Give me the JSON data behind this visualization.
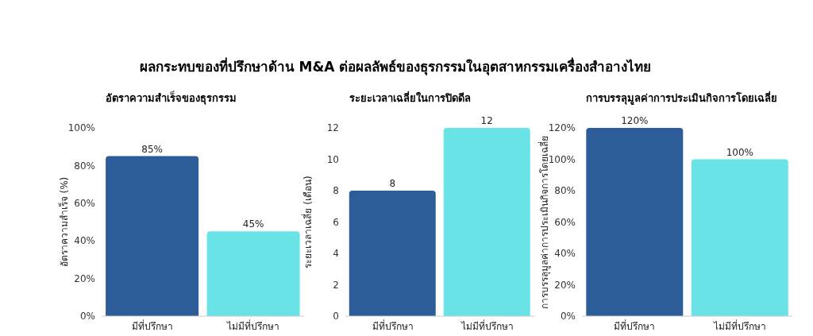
{
  "chart_data": [
    {
      "type": "bar",
      "title": "อัตราความสำเร็จของธุรกรรม",
      "annotations": [
        "ผลกระทบของที่ปรึกษาด้าน M&A ต่อผลลัพธ์ของธุรกรรมในอุตสาหกรรมเครื่องสำอางไทย"
      ],
      "ylabel": "อัตราความสำเร็จ (%)",
      "categories": [
        "มีที่ปรึกษา",
        "ไม่มีที่ปรึกษา"
      ],
      "values": [
        85,
        45
      ],
      "value_labels": [
        "85%",
        "45%"
      ],
      "colors": [
        "#2d5d98",
        "#6ae3e7"
      ],
      "ylim": [
        0,
        100
      ],
      "yticks": [
        {
          "value": 0,
          "label": "0%"
        },
        {
          "value": 20,
          "label": "20%"
        },
        {
          "value": 40,
          "label": "40%"
        },
        {
          "value": 60,
          "label": "60%"
        },
        {
          "value": 80,
          "label": "80%"
        },
        {
          "value": 100,
          "label": "100%"
        }
      ]
    },
    {
      "type": "bar",
      "title": "ระยะเวลาเฉลี่ยในการปิดดีล",
      "ylabel": "ระยะเวลาเฉลี่ย (เดือน)",
      "categories": [
        "มีที่ปรึกษา",
        "ไม่มีที่ปรึกษา"
      ],
      "values": [
        8,
        12
      ],
      "data_labels": true,
      "colors": [
        "#2d5d98",
        "#6ae3e7"
      ],
      "ylim": [
        0,
        12
      ],
      "yticks": [
        0,
        2,
        4,
        6,
        8,
        10,
        12
      ]
    },
    {
      "type": "bar",
      "title": "การบรรลุมูลค่าการประเมินกิจการโดยเฉลี่ย",
      "ylabel": "การบรรลุมูลค่าการประเมินกิจการโดยเฉลี่ย",
      "categories": [
        "มีที่ปรึกษา",
        "ไม่มีที่ปรึกษา"
      ],
      "values": [
        120,
        100
      ],
      "value_labels": [
        "120%",
        "100%"
      ],
      "colors": [
        "#2d5d98",
        "#6ae3e7"
      ],
      "ylim": [
        0,
        120
      ],
      "yticks": [
        {
          "value": 0,
          "label": "0%"
        },
        {
          "value": 20,
          "label": "20%"
        },
        {
          "value": 40,
          "label": "40%"
        },
        {
          "value": 60,
          "label": "60%"
        },
        {
          "value": 80,
          "label": "80%"
        },
        {
          "value": 100,
          "label": "100%"
        },
        {
          "value": 120,
          "label": "120%"
        }
      ]
    }
  ]
}
